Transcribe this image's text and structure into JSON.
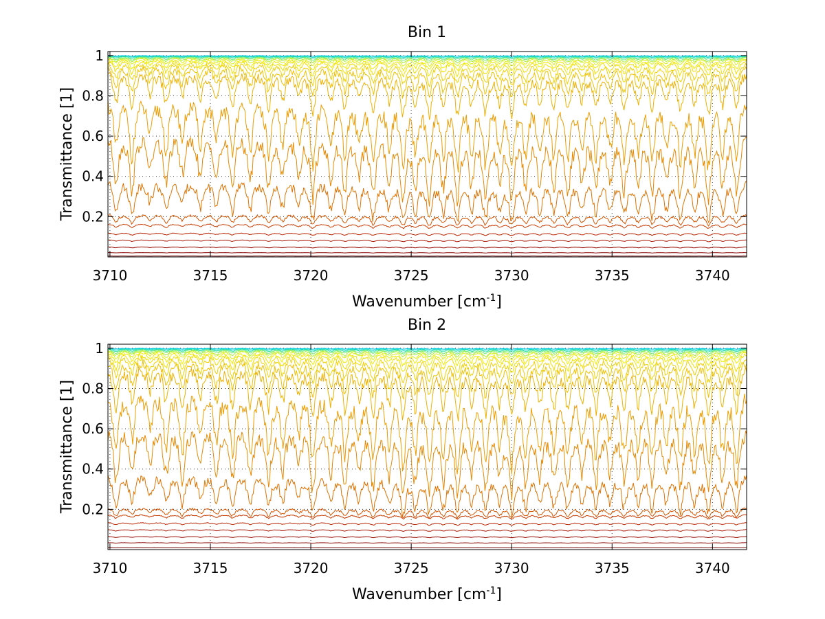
{
  "chart_data": [
    {
      "type": "line",
      "title": "Bin 1",
      "xlabel": "Wavenumber [cm",
      "xlabel_superscript": "-1",
      "xlabel_suffix": "]",
      "ylabel": "Transmittance [1]",
      "xlim": [
        3709.9,
        3741.7
      ],
      "ylim": [
        0,
        1.02
      ],
      "xticks": [
        3710,
        3715,
        3720,
        3725,
        3730,
        3735,
        3740
      ],
      "yticks": [
        0.2,
        0.4,
        0.6,
        0.8,
        1
      ],
      "ytick_labels": [
        "0.2",
        "0.4",
        "0.6",
        "0.8",
        "1"
      ],
      "grid": true,
      "line_positions": [
        3710.3,
        3711.1,
        3712.0,
        3712.8,
        3713.6,
        3714.5,
        3715.3,
        3716.1,
        3717.0,
        3717.9,
        3718.6,
        3719.4,
        3720.1,
        3721.0,
        3721.7,
        3722.4,
        3723.1,
        3723.9,
        3724.6,
        3725.2,
        3725.9,
        3726.6,
        3727.3,
        3728.0,
        3728.7,
        3729.4,
        3730.0,
        3730.7,
        3731.4,
        3732.1,
        3732.8,
        3733.5,
        3734.2,
        3734.9,
        3735.6,
        3736.3,
        3737.0,
        3737.7,
        3738.4,
        3739.1,
        3739.8,
        3740.5,
        3741.2
      ],
      "line_strengths": [
        0.75,
        0.9,
        0.55,
        0.8,
        0.6,
        0.7,
        0.65,
        0.8,
        0.7,
        0.85,
        0.65,
        0.6,
        1.0,
        0.7,
        0.85,
        0.6,
        0.95,
        0.7,
        1.0,
        0.75,
        1.0,
        0.8,
        1.0,
        0.75,
        0.95,
        0.7,
        1.0,
        0.8,
        0.75,
        0.8,
        0.9,
        0.7,
        0.85,
        0.7,
        0.85,
        0.75,
        0.9,
        0.7,
        0.95,
        0.75,
        1.0,
        0.8,
        0.9
      ],
      "series": [
        {
          "values_base": 1.0,
          "depth": 0.003,
          "color": "#00c8e6"
        },
        {
          "values_base": 0.998,
          "depth": 0.006,
          "color": "#00d8c8"
        },
        {
          "values_base": 0.996,
          "depth": 0.01,
          "color": "#30e0a0"
        },
        {
          "values_base": 0.994,
          "depth": 0.016,
          "color": "#70ec70"
        },
        {
          "values_base": 0.992,
          "depth": 0.024,
          "color": "#a8f040"
        },
        {
          "values_base": 0.99,
          "depth": 0.035,
          "color": "#d8f020"
        },
        {
          "values_base": 0.985,
          "depth": 0.05,
          "color": "#f0ec00"
        },
        {
          "values_base": 0.98,
          "depth": 0.07,
          "color": "#f0e000"
        },
        {
          "values_base": 0.97,
          "depth": 0.1,
          "color": "#f0d000"
        },
        {
          "values_base": 0.955,
          "depth": 0.14,
          "color": "#f0c000"
        },
        {
          "values_base": 0.93,
          "depth": 0.2,
          "color": "#eeb000"
        },
        {
          "values_base": 0.8,
          "depth": 0.32,
          "color": "#ec9c00"
        },
        {
          "values_base": 0.62,
          "depth": 0.3,
          "color": "#e68800"
        },
        {
          "values_base": 0.39,
          "depth": 0.19,
          "color": "#de7200"
        },
        {
          "values_base": 0.215,
          "depth": 0.05,
          "color": "#d45400"
        },
        {
          "values_base": 0.165,
          "depth": 0.02,
          "color": "#c83a00"
        },
        {
          "values_base": 0.12,
          "depth": 0.012,
          "color": "#b82400"
        },
        {
          "values_base": 0.085,
          "depth": 0.008,
          "color": "#a81400"
        },
        {
          "values_base": 0.05,
          "depth": 0.005,
          "color": "#980800"
        },
        {
          "values_base": 0.022,
          "depth": 0.002,
          "color": "#880000"
        },
        {
          "values_base": 0.005,
          "depth": 0.001,
          "color": "#700000"
        }
      ]
    },
    {
      "type": "line",
      "title": "Bin 2",
      "xlabel": "Wavenumber [cm",
      "xlabel_superscript": "-1",
      "xlabel_suffix": "]",
      "ylabel": "Transmittance [1]",
      "xlim": [
        3709.9,
        3741.7
      ],
      "ylim": [
        0,
        1.02
      ],
      "xticks": [
        3710,
        3715,
        3720,
        3725,
        3730,
        3735,
        3740
      ],
      "yticks": [
        0.2,
        0.4,
        0.6,
        0.8,
        1
      ],
      "ytick_labels": [
        "0.2",
        "0.4",
        "0.6",
        "0.8",
        "1"
      ],
      "grid": true,
      "line_positions": [
        3710.3,
        3711.1,
        3712.0,
        3712.8,
        3713.6,
        3714.5,
        3715.3,
        3716.1,
        3717.0,
        3717.9,
        3718.6,
        3719.4,
        3720.1,
        3721.0,
        3721.7,
        3722.4,
        3723.1,
        3723.9,
        3724.6,
        3725.2,
        3725.9,
        3726.6,
        3727.3,
        3728.0,
        3728.7,
        3729.4,
        3730.0,
        3730.7,
        3731.4,
        3732.1,
        3732.8,
        3733.5,
        3734.2,
        3734.9,
        3735.6,
        3736.3,
        3737.0,
        3737.7,
        3738.4,
        3739.1,
        3739.8,
        3740.5,
        3741.2
      ],
      "line_strengths": [
        0.9,
        0.7,
        0.55,
        0.75,
        0.85,
        0.6,
        0.7,
        0.85,
        0.8,
        0.85,
        0.7,
        0.55,
        1.0,
        0.75,
        0.85,
        0.65,
        0.95,
        0.75,
        1.0,
        0.8,
        1.0,
        0.85,
        1.0,
        0.75,
        0.95,
        0.7,
        1.0,
        0.85,
        0.75,
        0.8,
        0.9,
        0.7,
        0.85,
        0.7,
        0.85,
        0.75,
        0.9,
        0.7,
        0.95,
        0.75,
        1.0,
        0.8,
        0.95
      ],
      "series": [
        {
          "values_base": 1.0,
          "depth": 0.004,
          "color": "#00c8e6"
        },
        {
          "values_base": 0.998,
          "depth": 0.008,
          "color": "#00d8c8"
        },
        {
          "values_base": 0.996,
          "depth": 0.013,
          "color": "#30e0a0"
        },
        {
          "values_base": 0.994,
          "depth": 0.02,
          "color": "#70ec70"
        },
        {
          "values_base": 0.992,
          "depth": 0.03,
          "color": "#a8f040"
        },
        {
          "values_base": 0.99,
          "depth": 0.042,
          "color": "#d8f020"
        },
        {
          "values_base": 0.985,
          "depth": 0.06,
          "color": "#f0ec00"
        },
        {
          "values_base": 0.978,
          "depth": 0.085,
          "color": "#f0e000"
        },
        {
          "values_base": 0.966,
          "depth": 0.12,
          "color": "#f0d000"
        },
        {
          "values_base": 0.95,
          "depth": 0.17,
          "color": "#f0c000"
        },
        {
          "values_base": 0.925,
          "depth": 0.24,
          "color": "#eeb000"
        },
        {
          "values_base": 0.8,
          "depth": 0.34,
          "color": "#ec9c00"
        },
        {
          "values_base": 0.62,
          "depth": 0.3,
          "color": "#e68800"
        },
        {
          "values_base": 0.38,
          "depth": 0.18,
          "color": "#de7200"
        },
        {
          "values_base": 0.21,
          "depth": 0.045,
          "color": "#d45400"
        },
        {
          "values_base": 0.175,
          "depth": 0.02,
          "color": "#c83a00"
        },
        {
          "values_base": 0.135,
          "depth": 0.012,
          "color": "#b82400"
        },
        {
          "values_base": 0.1,
          "depth": 0.008,
          "color": "#a81400"
        },
        {
          "values_base": 0.065,
          "depth": 0.005,
          "color": "#980800"
        },
        {
          "values_base": 0.035,
          "depth": 0.003,
          "color": "#880000"
        },
        {
          "values_base": 0.01,
          "depth": 0.001,
          "color": "#700000"
        }
      ]
    }
  ]
}
